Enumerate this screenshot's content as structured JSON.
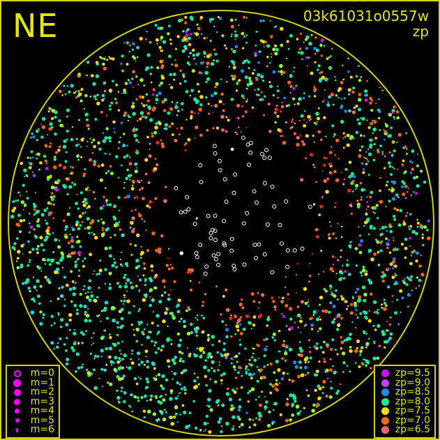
{
  "header": {
    "compass": "NE",
    "frame_id": "03k61031o0557w",
    "quantity": "zp"
  },
  "colors": {
    "frame": "#d4d400",
    "text": "#e6e600",
    "background": "#000000",
    "magnitude_symbol": "#ff00ff"
  },
  "chart_data": {
    "type": "scatter",
    "title": "03k61031o0557w",
    "subtitle": "zp",
    "projection": "all-sky circle",
    "size_legend": {
      "position": "bottom-left",
      "entries": [
        {
          "label": "m=0",
          "style": "hollow"
        },
        {
          "label": "m=1",
          "style": "filled"
        },
        {
          "label": "m=2",
          "style": "filled"
        },
        {
          "label": "m=3",
          "style": "filled"
        },
        {
          "label": "m=4",
          "style": "filled"
        },
        {
          "label": "m=5",
          "style": "filled"
        },
        {
          "label": "m=6",
          "style": "filled"
        }
      ]
    },
    "color_legend": {
      "position": "bottom-right",
      "entries": [
        {
          "label": "zp=9.5",
          "value": 9.5,
          "color": "#cc11ff"
        },
        {
          "label": "zp=9.0",
          "value": 9.0,
          "color": "#bb44ee"
        },
        {
          "label": "zp=8.5",
          "value": 8.5,
          "color": "#2288ff"
        },
        {
          "label": "zp=8.0",
          "value": 8.0,
          "color": "#11ee99"
        },
        {
          "label": "zp=7.5",
          "value": 7.5,
          "color": "#ffdd00"
        },
        {
          "label": "zp=7.0",
          "value": 7.0,
          "color": "#ff6611"
        },
        {
          "label": "zp=6.5",
          "value": 6.5,
          "color": "#ff6666"
        }
      ]
    }
  }
}
